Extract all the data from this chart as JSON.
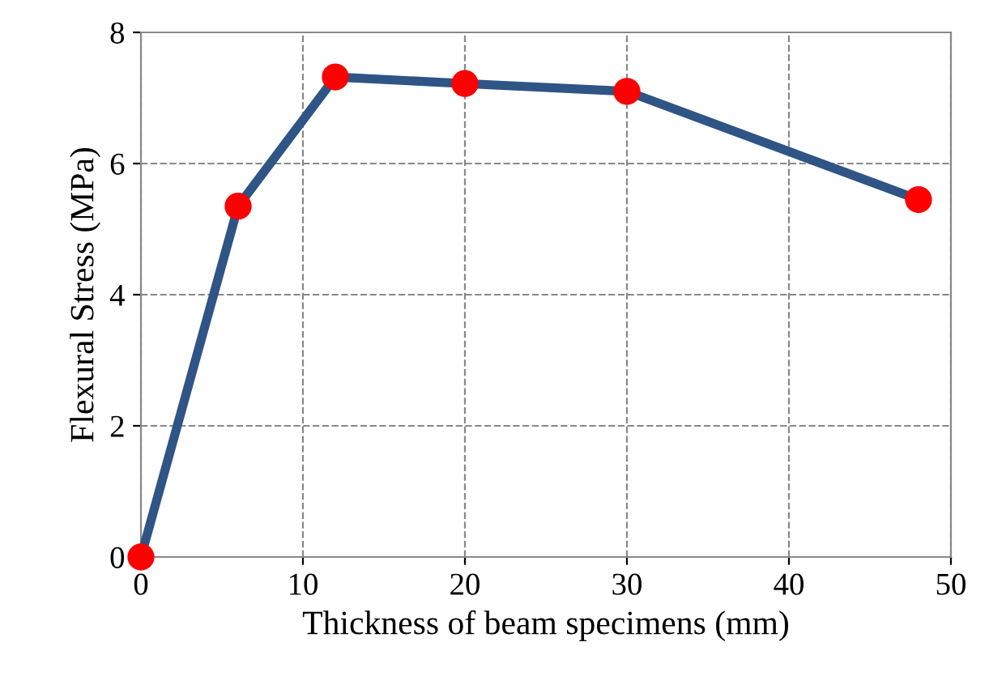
{
  "chart_data": {
    "type": "line",
    "xlabel": "Thickness of beam specimens (mm)",
    "ylabel": "Flexural Stress (MPa)",
    "x": [
      0,
      6,
      12,
      20,
      30,
      48
    ],
    "series": [
      {
        "color": "#2f5486",
        "colors": [
          "#ff0000",
          "#ff0000",
          "#ff0000",
          "#ff0000",
          "#ff0000",
          "#ff0000"
        ],
        "values": [
          0,
          5.35,
          7.32,
          7.22,
          7.1,
          5.45
        ]
      }
    ],
    "xlim": [
      0,
      50
    ],
    "xticks": [
      0,
      10,
      20,
      30,
      40,
      50
    ],
    "ylim": [
      0,
      8
    ],
    "yticks": [
      0,
      2,
      4,
      6,
      8
    ],
    "grid": true,
    "marker": "circle",
    "line_style": "solid",
    "legend": false
  }
}
